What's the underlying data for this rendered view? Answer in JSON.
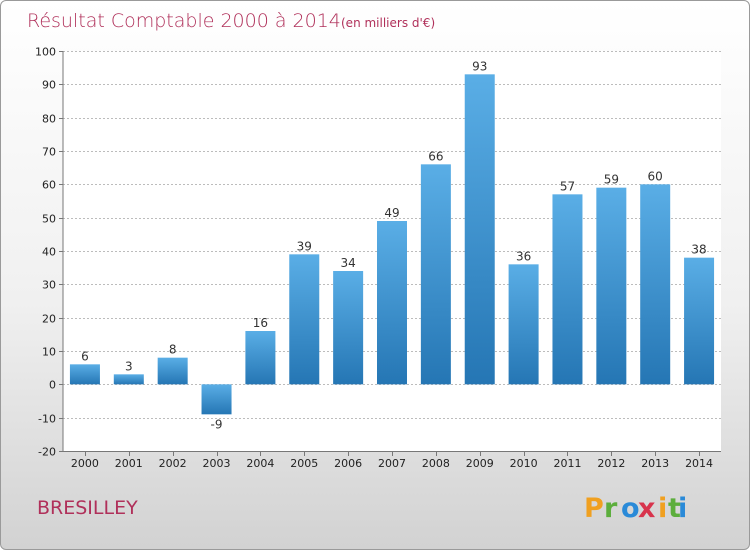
{
  "chart_data": {
    "type": "bar",
    "title": "Résultat Comptable 2000 à 2014",
    "subtitle": "(en milliers d'€)",
    "categories": [
      "2000",
      "2001",
      "2002",
      "2003",
      "2004",
      "2005",
      "2006",
      "2007",
      "2008",
      "2009",
      "2010",
      "2011",
      "2012",
      "2013",
      "2014"
    ],
    "values": [
      6,
      3,
      8,
      -9,
      16,
      39,
      34,
      49,
      66,
      93,
      36,
      57,
      59,
      60,
      38
    ],
    "ylim": [
      -20,
      100
    ],
    "yticks": [
      -20,
      -10,
      0,
      10,
      20,
      30,
      40,
      50,
      60,
      70,
      80,
      90,
      100
    ],
    "grid": true,
    "xlabel": "",
    "ylabel": "",
    "bar_color_top": "#5aaee6",
    "bar_color_bottom": "#2576b4"
  },
  "commune": "BRESILLEY",
  "logo": {
    "text": "Proxiti",
    "letters": [
      "P",
      "r",
      "o",
      "x",
      "i",
      "t",
      "i"
    ],
    "colors": [
      "#f0a020",
      "#5cae3c",
      "#2a8ad8",
      "#d8344c",
      "#f0a020",
      "#5cae3c",
      "#2a8ad8"
    ]
  }
}
